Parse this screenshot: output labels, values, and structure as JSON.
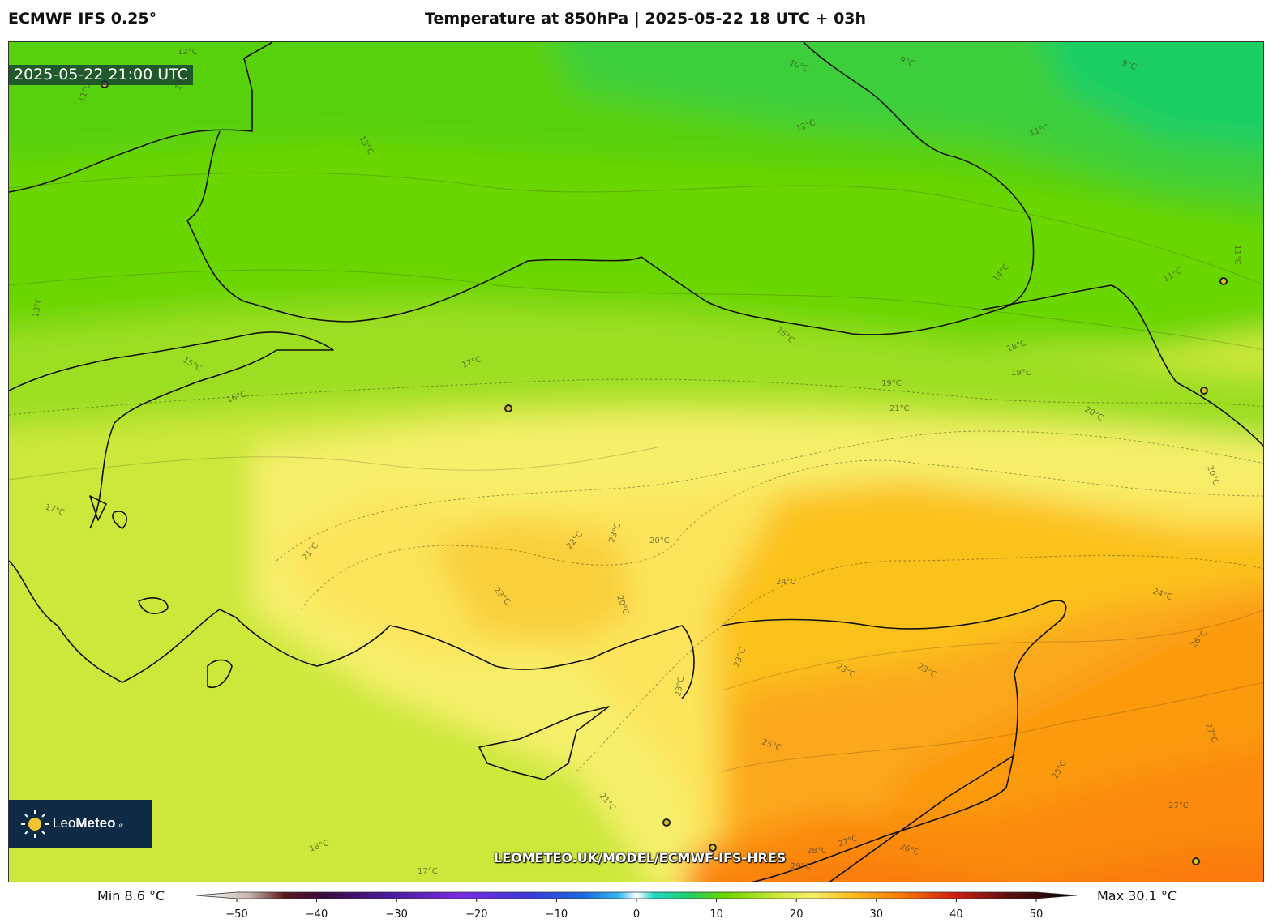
{
  "header": {
    "model": "ECMWF IFS 0.25°",
    "title": "Temperature at 850hPa | 2025-05-22 18 UTC + 03h"
  },
  "map": {
    "valid_time": "2025-05-22 21:00 UTC",
    "watermark": "LEOMETEO.UK/MODEL/ECMWF-IFS-HRES",
    "logo": {
      "name_light": "Leo",
      "name_bold": "Meteo",
      "suffix": ".uk"
    },
    "variable": "Temperature at 850hPa",
    "unit": "°C",
    "contour_labels": [
      "12°C",
      "11°C",
      "12°C",
      "13°C",
      "10°C",
      "9°C",
      "9°C",
      "12°C",
      "11°C",
      "11°C",
      "14°C",
      "11°C",
      "13°C",
      "15°C",
      "15°C",
      "18°C",
      "19°C",
      "17°C",
      "16°C",
      "19°C",
      "21°C",
      "20°C",
      "20°C",
      "21°C",
      "22°C",
      "23°C",
      "23°C",
      "20°C",
      "20°C",
      "24°C",
      "24°C",
      "23°C",
      "23°C",
      "23°C",
      "26°C",
      "17°C",
      "23°C",
      "25°C",
      "27°C",
      "21°C",
      "25°C",
      "27°C",
      "18°C",
      "26°C",
      "27°C",
      "28°C",
      "29°C",
      "17°C"
    ],
    "colors": {
      "cool_green": "#1fcf63",
      "green": "#6ad600",
      "yellow_green": "#cde83a",
      "yellow": "#f6ef6a",
      "amber": "#fbc21f",
      "orange": "#fb9a10",
      "deep_orange": "#fb7a08",
      "coastline": "#111111"
    }
  },
  "colorbar": {
    "min_label": "Min 8.6 °C",
    "max_label": "Max 30.1 °C",
    "ticks": [
      "−50",
      "−40",
      "−30",
      "−20",
      "−10",
      "0",
      "10",
      "20",
      "30",
      "40",
      "50"
    ],
    "range": [
      -50,
      50
    ]
  }
}
